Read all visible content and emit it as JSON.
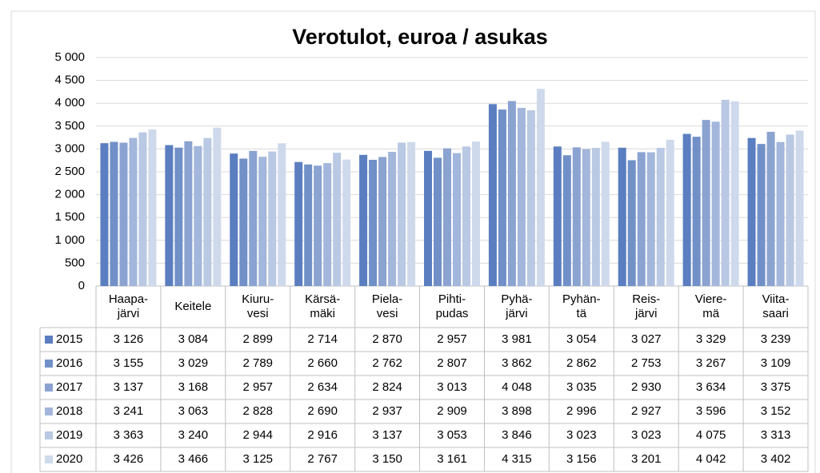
{
  "chart_data": {
    "type": "bar",
    "title": "Verotulot, euroa / asukas",
    "categories": [
      [
        "Haapa-",
        "järvi"
      ],
      [
        "Keitele"
      ],
      [
        "Kiuru-",
        "vesi"
      ],
      [
        "Kärsä-",
        "mäki"
      ],
      [
        "Piela-",
        "vesi"
      ],
      [
        "Pihti-",
        "pudas"
      ],
      [
        "Pyhä-",
        "järvi"
      ],
      [
        "Pyhän-",
        "tä"
      ],
      [
        "Reis-",
        "järvi"
      ],
      [
        "Viere-",
        "mä"
      ],
      [
        "Viita-",
        "saari"
      ]
    ],
    "series": [
      {
        "name": "2015",
        "color": "#5a7ec0",
        "values": [
          3126,
          3084,
          2899,
          2714,
          2870,
          2957,
          3981,
          3054,
          3027,
          3329,
          3239
        ],
        "value_labels": [
          "3 126",
          "3 084",
          "2 899",
          "2 714",
          "2 870",
          "2 957",
          "3 981",
          "3 054",
          "3 027",
          "3 329",
          "3 239"
        ]
      },
      {
        "name": "2016",
        "color": "#7190c8",
        "values": [
          3155,
          3029,
          2789,
          2660,
          2762,
          2807,
          3862,
          2862,
          2753,
          3267,
          3109
        ],
        "value_labels": [
          "3 155",
          "3 029",
          "2 789",
          "2 660",
          "2 762",
          "2 807",
          "3 862",
          "2 862",
          "2 753",
          "3 267",
          "3 109"
        ]
      },
      {
        "name": "2017",
        "color": "#8ba3d1",
        "values": [
          3137,
          3168,
          2957,
          2634,
          2824,
          3013,
          4048,
          3035,
          2930,
          3634,
          3375
        ],
        "value_labels": [
          "3 137",
          "3 168",
          "2 957",
          "2 634",
          "2 824",
          "3 013",
          "4 048",
          "3 035",
          "2 930",
          "3 634",
          "3 375"
        ]
      },
      {
        "name": "2018",
        "color": "#a3b6db",
        "values": [
          3241,
          3063,
          2828,
          2690,
          2937,
          2909,
          3898,
          2996,
          2927,
          3596,
          3152
        ],
        "value_labels": [
          "3 241",
          "3 063",
          "2 828",
          "2 690",
          "2 937",
          "2 909",
          "3 898",
          "2 996",
          "2 927",
          "3 596",
          "3 152"
        ]
      },
      {
        "name": "2019",
        "color": "#b9c8e3",
        "values": [
          3363,
          3240,
          2944,
          2916,
          3137,
          3053,
          3846,
          3023,
          3023,
          4075,
          3313
        ],
        "value_labels": [
          "3 363",
          "3 240",
          "2 944",
          "2 916",
          "3 137",
          "3 053",
          "3 846",
          "3 023",
          "3 023",
          "4 075",
          "3 313"
        ]
      },
      {
        "name": "2020",
        "color": "#cfd9ec",
        "values": [
          3426,
          3466,
          3125,
          2767,
          3150,
          3161,
          4315,
          3156,
          3201,
          4042,
          3402
        ],
        "value_labels": [
          "3 426",
          "3 466",
          "3 125",
          "2 767",
          "3 150",
          "3 161",
          "4 315",
          "3 156",
          "3 201",
          "4 042",
          "3 402"
        ]
      }
    ],
    "ylim": [
      0,
      5000
    ],
    "yticks": [
      0,
      500,
      {
        "value": 1000,
        "label": "1 000"
      },
      {
        "value": 1500,
        "label": "1 500"
      },
      {
        "value": 2000,
        "label": "2 000"
      },
      {
        "value": 2500,
        "label": "2 500"
      },
      {
        "value": 3000,
        "label": "3 000"
      },
      {
        "value": 3500,
        "label": "3 500"
      },
      {
        "value": 4000,
        "label": "4 000"
      },
      {
        "value": 4500,
        "label": "4 500"
      },
      {
        "value": 5000,
        "label": "5 000"
      }
    ],
    "grid": true
  }
}
